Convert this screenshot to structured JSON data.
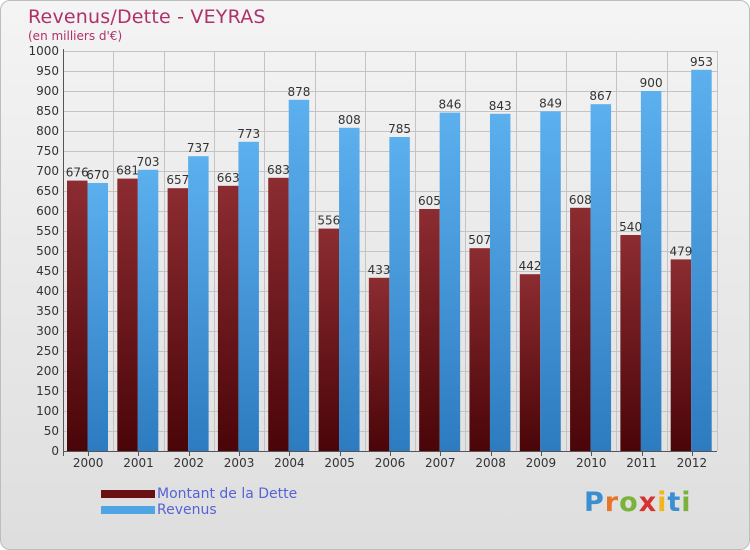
{
  "title": "Revenus/Dette - VEYRAS",
  "subtitle": "(en milliers d'€)",
  "brand": "Proxiti",
  "colors": {
    "dette": "#7a1f24",
    "revenus": "#4fa4e4",
    "title": "#b0306a",
    "legend_text": "#5663d6"
  },
  "chart_data": {
    "type": "bar",
    "title": "Revenus/Dette - VEYRAS",
    "subtitle": "(en milliers d'€)",
    "categories": [
      "2000",
      "2001",
      "2002",
      "2003",
      "2004",
      "2005",
      "2006",
      "2007",
      "2008",
      "2009",
      "2010",
      "2011",
      "2012"
    ],
    "series": [
      {
        "name": "Montant de la Dette",
        "values": [
          676,
          681,
          657,
          663,
          683,
          556,
          433,
          605,
          507,
          442,
          608,
          540,
          479
        ]
      },
      {
        "name": "Revenus",
        "values": [
          670,
          703,
          737,
          773,
          878,
          808,
          785,
          846,
          843,
          849,
          867,
          900,
          953
        ]
      }
    ],
    "ylim": [
      0,
      1000
    ],
    "yticks": [
      0,
      50,
      100,
      150,
      200,
      250,
      300,
      350,
      400,
      450,
      500,
      550,
      600,
      650,
      700,
      750,
      800,
      850,
      900,
      950,
      1000
    ],
    "grid": true,
    "legend": "bottom-left"
  }
}
